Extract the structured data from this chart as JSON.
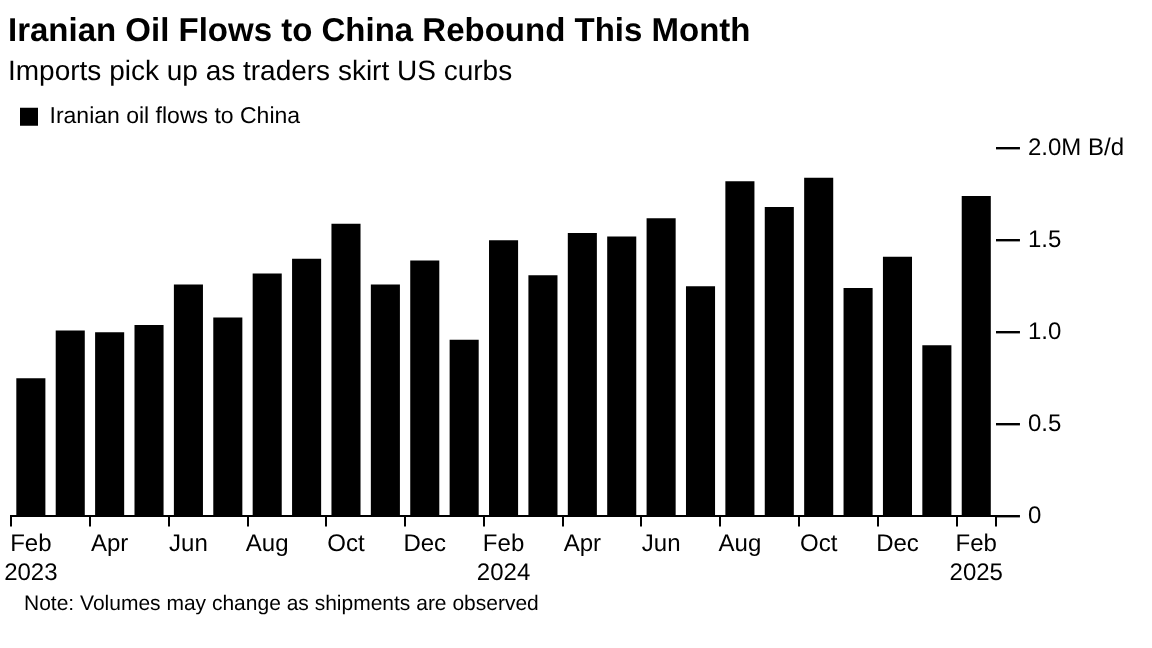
{
  "chart_data": {
    "type": "bar",
    "title": "Iranian Oil Flows to China Rebound This Month",
    "subtitle": "Imports pick up as traders skirt US curbs",
    "categories": [
      "Feb 2023",
      null,
      "Apr",
      null,
      "Jun",
      null,
      "Aug",
      null,
      "Oct",
      null,
      "Dec",
      null,
      "Feb 2024",
      null,
      "Apr",
      null,
      "Jun",
      null,
      "Aug",
      null,
      "Oct",
      null,
      "Dec",
      null,
      "Feb 2025"
    ],
    "series": [
      {
        "name": "Iranian oil flows to China",
        "color": "#000000",
        "values": [
          0.75,
          1.01,
          1.0,
          1.04,
          1.26,
          1.08,
          1.32,
          1.4,
          1.59,
          1.26,
          1.39,
          0.96,
          1.5,
          1.31,
          1.54,
          1.52,
          1.62,
          1.25,
          1.82,
          1.68,
          1.84,
          1.24,
          1.41,
          0.93,
          1.74
        ]
      }
    ],
    "ylim": [
      0,
      2
    ],
    "yticks": [
      0,
      0.5,
      {
        "value": 1,
        "label": "1.0"
      },
      1.5,
      {
        "value": 2,
        "label": "2.0M B/d"
      }
    ],
    "legend": "top left",
    "grid": false,
    "annotations": [
      "Note: Volumes may change as shipments are observed"
    ]
  }
}
